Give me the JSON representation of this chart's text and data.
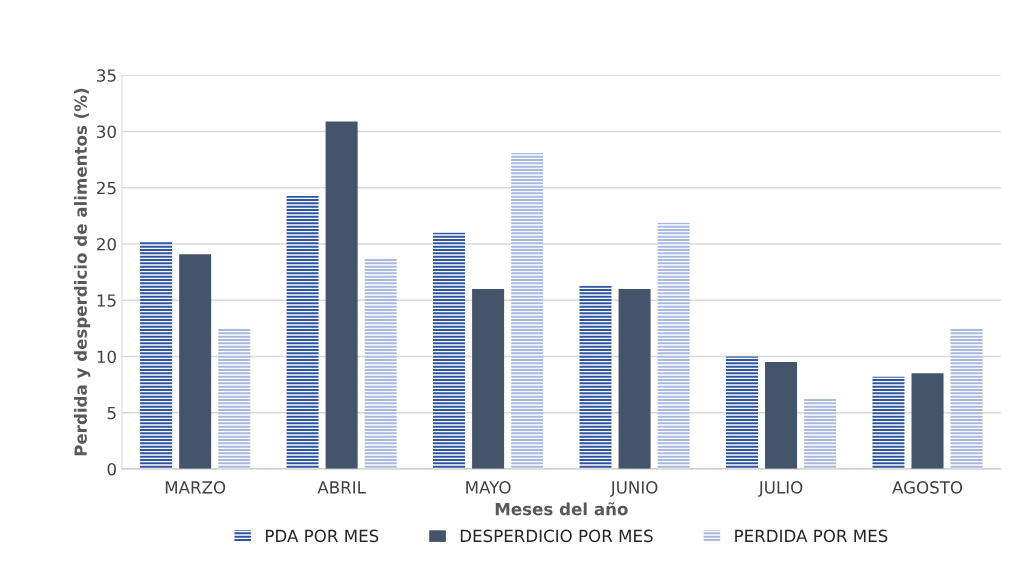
{
  "chart_data": {
    "type": "bar",
    "xlabel": "Meses del año",
    "ylabel": "Perdida y desperdicio de alimentos (%)",
    "categories": [
      "MARZO",
      "ABRIL",
      "MAYO",
      "JUNIO",
      "JULIO",
      "AGOSTO"
    ],
    "series": [
      {
        "name": "PDA POR MES",
        "color": "#2f55a0",
        "values": [
          20.2,
          24.3,
          21.0,
          16.3,
          10.0,
          8.2
        ]
      },
      {
        "name": "DESPERDICIO POR MES",
        "color": "#44546a",
        "values": [
          19.1,
          30.9,
          16.0,
          16.0,
          9.5,
          8.5
        ]
      },
      {
        "name": "PERDIDA POR MES",
        "color": "#a9b8de",
        "values": [
          12.5,
          18.7,
          28.1,
          21.9,
          6.3,
          12.5
        ]
      }
    ],
    "ylim": [
      0,
      35
    ],
    "yticks": [
      0,
      5,
      10,
      15,
      20,
      25,
      30,
      35
    ],
    "grid": "y",
    "legend": "bottom"
  }
}
